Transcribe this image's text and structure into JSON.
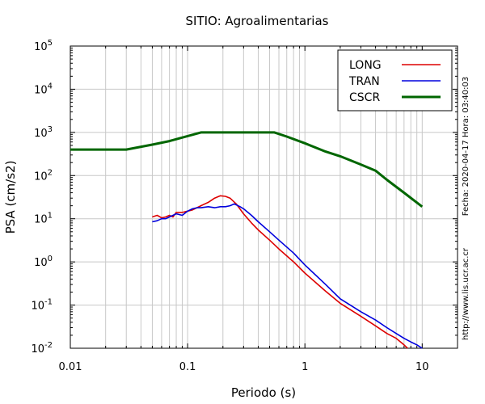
{
  "chart_data": {
    "type": "line",
    "title": "SITIO: Agroalimentarias",
    "xlabel": "Periodo (s)",
    "ylabel": "PSA (cm/s2)",
    "x_scale": "log",
    "y_scale": "log",
    "xlim": [
      0.01,
      20
    ],
    "ylim": [
      0.01,
      100000
    ],
    "grid": true,
    "legend_position": "top-right",
    "x_ticks": [
      "0.01",
      "0.1",
      "1",
      "10"
    ],
    "y_ticks": [
      {
        "base": "10",
        "exp": "-2"
      },
      {
        "base": "10",
        "exp": "-1"
      },
      {
        "base": "10",
        "exp": "0"
      },
      {
        "base": "10",
        "exp": "1"
      },
      {
        "base": "10",
        "exp": "2"
      },
      {
        "base": "10",
        "exp": "3"
      },
      {
        "base": "10",
        "exp": "4"
      },
      {
        "base": "10",
        "exp": "5"
      }
    ],
    "series": [
      {
        "name": "LONG",
        "color": "#dd0000",
        "x": [
          0.05,
          0.055,
          0.06,
          0.065,
          0.07,
          0.075,
          0.08,
          0.09,
          0.1,
          0.11,
          0.12,
          0.13,
          0.15,
          0.17,
          0.19,
          0.21,
          0.23,
          0.26,
          0.3,
          0.35,
          0.4,
          0.5,
          0.6,
          0.8,
          1.0,
          1.5,
          2.0,
          3.0,
          4.0,
          5.0,
          6.0,
          7.0,
          7.5
        ],
        "y": [
          11,
          12,
          10.5,
          11,
          12,
          11,
          14,
          14,
          15,
          16,
          18,
          20,
          24,
          30,
          34,
          33,
          30,
          22,
          13,
          8,
          5.5,
          3.2,
          2.0,
          1.0,
          0.55,
          0.21,
          0.11,
          0.055,
          0.033,
          0.022,
          0.017,
          0.012,
          0.01
        ]
      },
      {
        "name": "TRAN",
        "color": "#0000dd",
        "x": [
          0.05,
          0.055,
          0.06,
          0.065,
          0.07,
          0.08,
          0.09,
          0.1,
          0.11,
          0.12,
          0.13,
          0.15,
          0.17,
          0.19,
          0.21,
          0.23,
          0.25,
          0.28,
          0.3,
          0.35,
          0.4,
          0.5,
          0.6,
          0.8,
          1.0,
          1.5,
          2.0,
          3.0,
          4.0,
          5.0,
          6.0,
          7.0,
          8.0,
          9.0,
          10.0
        ],
        "y": [
          8.5,
          9,
          10,
          10,
          11,
          13,
          12,
          15,
          17,
          18,
          18,
          19,
          18,
          19,
          19,
          20,
          22,
          19,
          17,
          12,
          8.5,
          5.0,
          3.2,
          1.6,
          0.85,
          0.3,
          0.14,
          0.07,
          0.045,
          0.03,
          0.022,
          0.017,
          0.014,
          0.012,
          0.01
        ]
      },
      {
        "name": "CSCR",
        "color": "#006600",
        "x": [
          0.01,
          0.03,
          0.05,
          0.07,
          0.13,
          0.55,
          0.7,
          1.0,
          1.5,
          2.0,
          3.0,
          4.0,
          5.0,
          7.0,
          10.0
        ],
        "y": [
          400,
          400,
          520,
          630,
          1000,
          1000,
          800,
          560,
          360,
          280,
          180,
          130,
          80,
          40,
          19
        ]
      }
    ]
  },
  "side_text": {
    "date_label": "Fecha: 2020-04-17 Hora: 03:40:03",
    "url_label": "http://www.lis.ucr.ac.cr"
  }
}
